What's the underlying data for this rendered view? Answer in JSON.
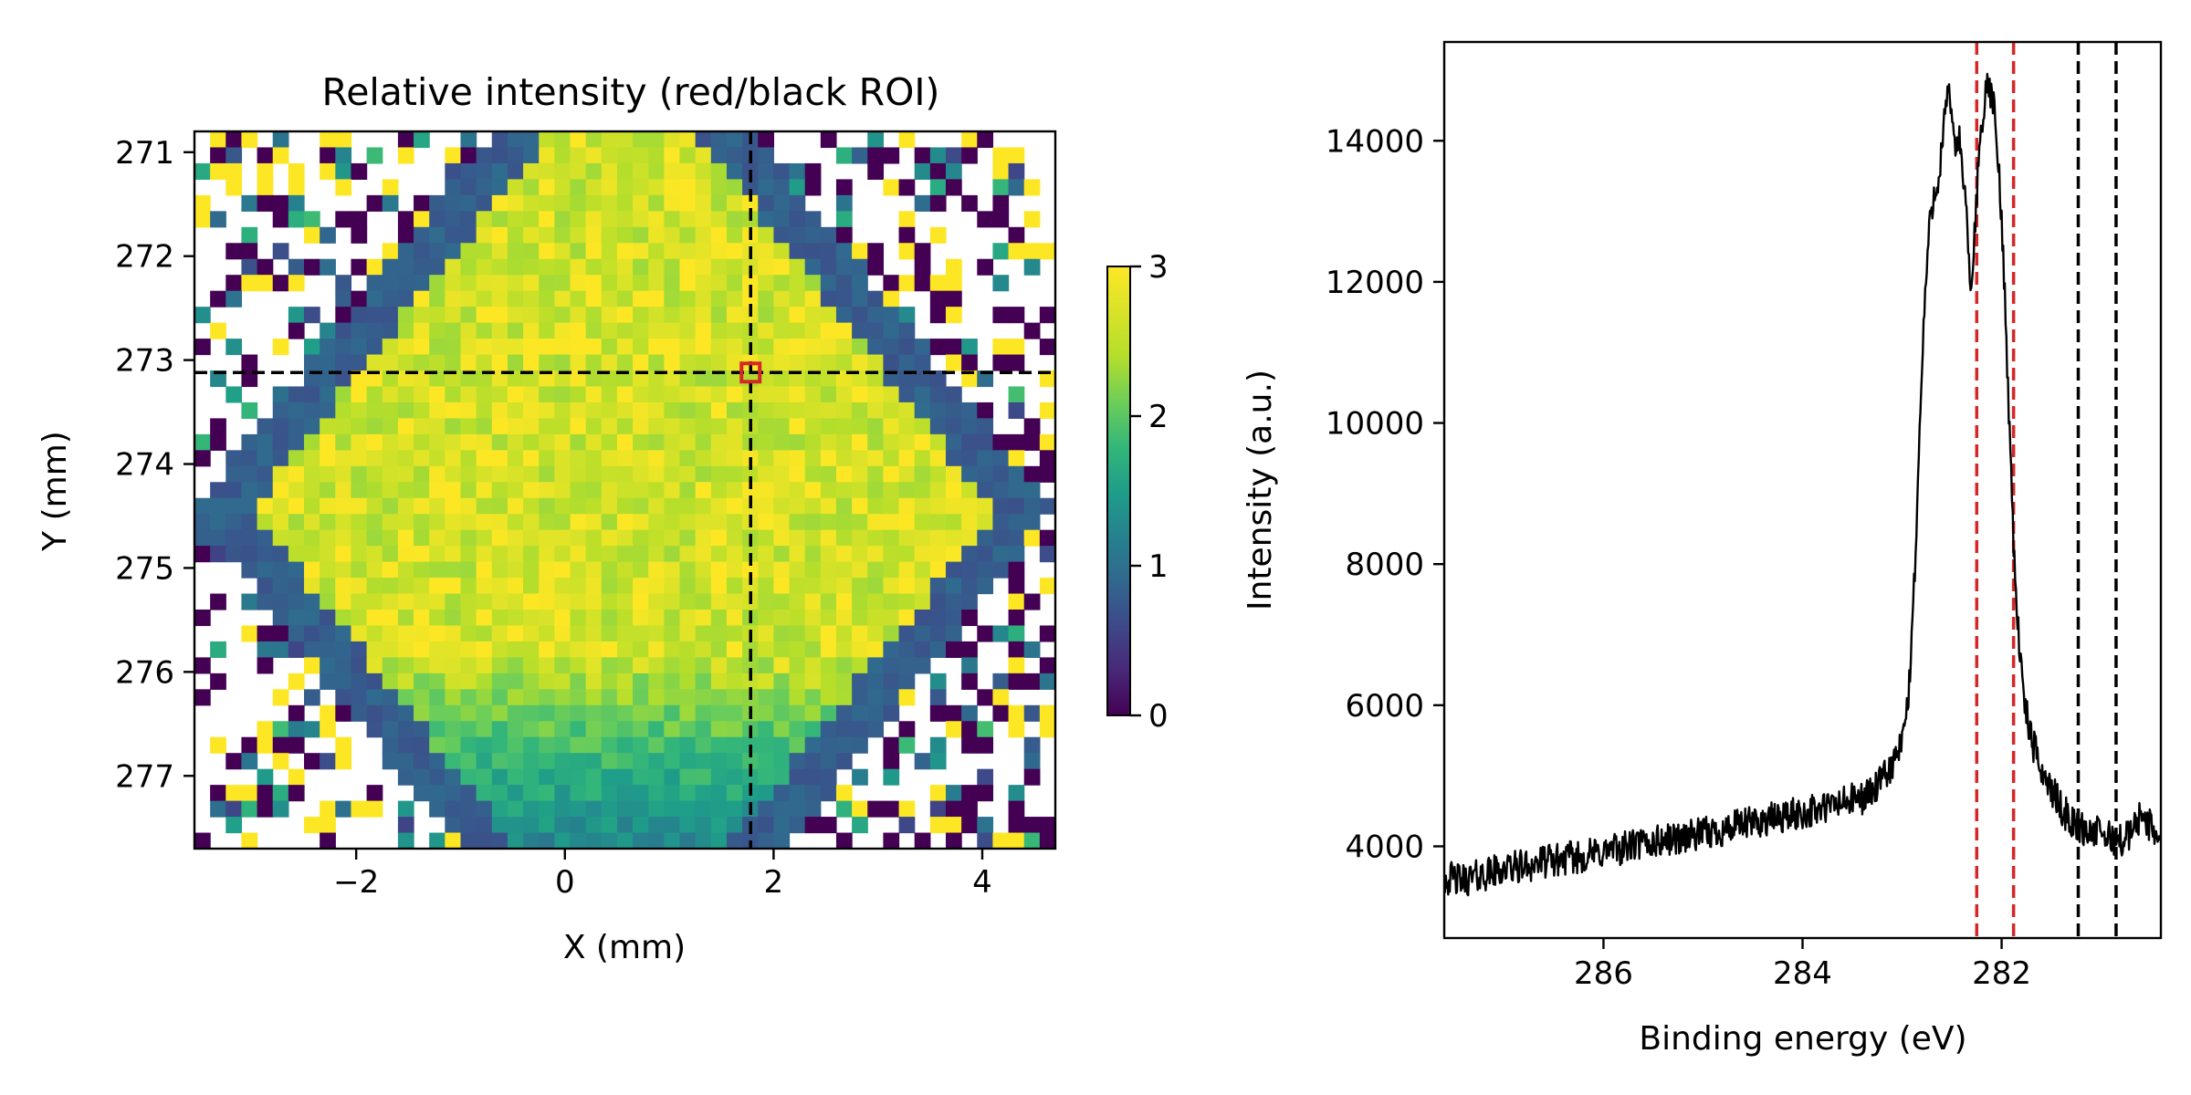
{
  "figure": {
    "panel_count": 2,
    "background": "#ffffff"
  },
  "chart_data": [
    {
      "type": "heatmap",
      "title": "Relative intensity (red/black ROI)",
      "xlabel": "X (mm)",
      "ylabel": "Y (mm)",
      "xlim": [
        -3.55,
        4.7
      ],
      "ylim": [
        277.7,
        270.8
      ],
      "y_inverted": true,
      "xticks": [
        -2,
        0,
        2,
        4
      ],
      "xtick_labels": [
        "−2",
        "0",
        "2",
        "4"
      ],
      "yticks": [
        271,
        272,
        273,
        274,
        275,
        276,
        277
      ],
      "ytick_labels": [
        "271",
        "272",
        "273",
        "274",
        "275",
        "276",
        "277"
      ],
      "grid_shape": [
        45,
        55
      ],
      "colormap": "viridis",
      "colorbar": {
        "min": 0,
        "max": 3,
        "ticks": [
          0,
          1,
          2,
          3
        ],
        "tick_labels": [
          "0",
          "1",
          "2",
          "3"
        ]
      },
      "description_values": {
        "interior_plateau": 2.8,
        "mid_ring": 2.0,
        "outer_ring": 0.9,
        "outside": "noisy / NaN"
      },
      "crosshair": {
        "x": 1.78,
        "y": 273.12,
        "color": "#000000",
        "style": "dashed"
      },
      "marker": {
        "x": 1.78,
        "y": 273.12,
        "color": "#d62728",
        "shape": "square"
      }
    },
    {
      "type": "line",
      "title": "",
      "xlabel": "Binding energy (eV)",
      "ylabel": "Intensity (a.u.)",
      "xlim": [
        287.6,
        280.4
      ],
      "x_inverted": true,
      "ylim": [
        2700,
        15400
      ],
      "xticks": [
        286,
        284,
        282
      ],
      "xtick_labels": [
        "286",
        "284",
        "282"
      ],
      "yticks": [
        4000,
        6000,
        8000,
        10000,
        12000,
        14000
      ],
      "ytick_labels": [
        "4000",
        "6000",
        "8000",
        "10000",
        "12000",
        "14000"
      ],
      "grid": false,
      "series": [
        {
          "color": "#000000",
          "points": [
            [
              287.6,
              3550
            ],
            [
              287.4,
              3520
            ],
            [
              287.2,
              3600
            ],
            [
              287.0,
              3680
            ],
            [
              286.8,
              3720
            ],
            [
              286.6,
              3780
            ],
            [
              286.4,
              3820
            ],
            [
              286.2,
              3860
            ],
            [
              286.0,
              3920
            ],
            [
              285.8,
              3980
            ],
            [
              285.6,
              4030
            ],
            [
              285.4,
              4080
            ],
            [
              285.2,
              4130
            ],
            [
              285.0,
              4170
            ],
            [
              284.8,
              4230
            ],
            [
              284.6,
              4300
            ],
            [
              284.4,
              4360
            ],
            [
              284.2,
              4420
            ],
            [
              284.0,
              4470
            ],
            [
              283.8,
              4530
            ],
            [
              283.6,
              4620
            ],
            [
              283.4,
              4690
            ],
            [
              283.25,
              4830
            ],
            [
              283.1,
              5150
            ],
            [
              283.0,
              5450
            ],
            [
              282.93,
              6200
            ],
            [
              282.87,
              8000
            ],
            [
              282.82,
              10000
            ],
            [
              282.78,
              11500
            ],
            [
              282.74,
              12500
            ],
            [
              282.7,
              13100
            ],
            [
              282.66,
              13350
            ],
            [
              282.62,
              13600
            ],
            [
              282.58,
              14200
            ],
            [
              282.54,
              14650
            ],
            [
              282.5,
              14400
            ],
            [
              282.46,
              13900
            ],
            [
              282.42,
              14000
            ],
            [
              282.38,
              13400
            ],
            [
              282.33,
              12400
            ],
            [
              282.3,
              11700
            ],
            [
              282.27,
              12700
            ],
            [
              282.23,
              13800
            ],
            [
              282.18,
              14500
            ],
            [
              282.13,
              14800
            ],
            [
              282.08,
              14500
            ],
            [
              282.03,
              13600
            ],
            [
              281.98,
              12300
            ],
            [
              281.93,
              10300
            ],
            [
              281.88,
              8300
            ],
            [
              281.83,
              7000
            ],
            [
              281.78,
              6100
            ],
            [
              281.7,
              5500
            ],
            [
              281.6,
              5100
            ],
            [
              281.5,
              4800
            ],
            [
              281.4,
              4550
            ],
            [
              281.3,
              4350
            ],
            [
              281.2,
              4250
            ],
            [
              281.0,
              4180
            ],
            [
              280.9,
              4120
            ],
            [
              280.8,
              4080
            ],
            [
              280.7,
              4180
            ],
            [
              280.6,
              4450
            ],
            [
              280.5,
              4280
            ],
            [
              280.4,
              4100
            ]
          ],
          "noise_amplitude": 300
        }
      ],
      "vlines": [
        {
          "x": 282.25,
          "color": "#d62728",
          "style": "dashed"
        },
        {
          "x": 281.88,
          "color": "#d62728",
          "style": "dashed"
        },
        {
          "x": 281.23,
          "color": "#000000",
          "style": "dashed"
        },
        {
          "x": 280.85,
          "color": "#000000",
          "style": "dashed"
        }
      ]
    }
  ]
}
